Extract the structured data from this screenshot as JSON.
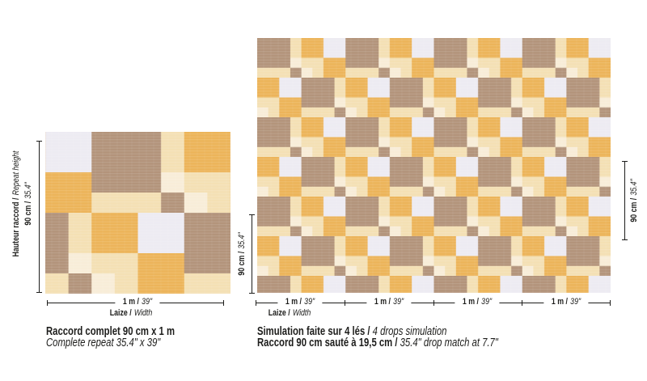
{
  "palette": {
    "taupe": "#b3947b",
    "gold": "#ecb45a",
    "cream": "#f4e0b4",
    "white": "#edebf2",
    "pale": "#f8edd8",
    "line": "#1d1d1b",
    "background": "#ffffff"
  },
  "pattern": {
    "description": "geometric overlapping-squares wallpaper motif, diagonal chains",
    "tile_rows": [
      "TTTCGGWW",
      "TTTCGGWW",
      "TTTPCCGG",
      "CCCTPCGG",
      "GGWWTTTC",
      "GGWWTTTC",
      "CCGGTTTP",
      "PCGGCCCT"
    ],
    "legend": {
      "T": "taupe",
      "G": "gold",
      "C": "cream",
      "W": "white",
      "P": "pale"
    }
  },
  "shared": {
    "meter_bold": "1 m /",
    "meter_italic": "39\"",
    "laize_bold": "Laize /",
    "laize_italic": "Width",
    "height_bold": "90 cm /",
    "height_italic": "35.4\""
  },
  "left_panel": {
    "repeat_label_bold": "Hauteur raccord /",
    "repeat_label_italic": "Repeat height",
    "caption_line1": "Raccord complet 90 cm x 1 m",
    "caption_line2": "Complete repeat 35.4\" x 39\""
  },
  "right_panel": {
    "caption_line1_bold": "Simulation faite sur 4 lés /",
    "caption_line1_italic": "4 drops simulation",
    "caption_line2_bold": "Raccord 90 cm sauté à 19,5 cm /",
    "caption_line2_italic": "35.4\" drop match at 7.7\""
  }
}
